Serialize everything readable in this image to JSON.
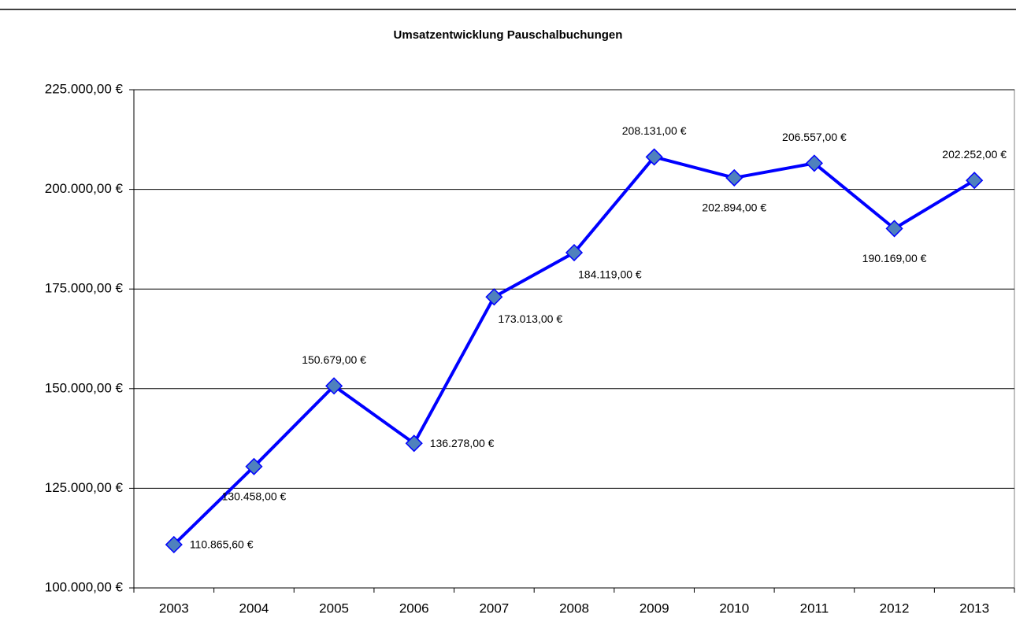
{
  "chart_data": {
    "type": "line",
    "title": "Umsatzentwicklung Pauschalbuchungen",
    "categories": [
      "2003",
      "2004",
      "2005",
      "2006",
      "2007",
      "2008",
      "2009",
      "2010",
      "2011",
      "2012",
      "2013"
    ],
    "series": [
      {
        "color": "#0000ff",
        "values": [
          110865.6,
          130458,
          150679,
          136278,
          173013,
          184119,
          208131,
          202894,
          206557,
          190169,
          202252
        ],
        "value_labels": [
          "110.865,60 €",
          "130.458,00 €",
          "150.679,00 €",
          "136.278,00 €",
          "173.013,00 €",
          "184.119,00 €",
          "208.131,00 €",
          "202.894,00 €",
          "206.557,00 €",
          "190.169,00 €",
          "202.252,00 €"
        ]
      }
    ],
    "ylim": [
      100000,
      225000
    ],
    "yticks": [
      {
        "value": 100000,
        "label": "100.000,00 €"
      },
      {
        "value": 125000,
        "label": "125.000,00 €"
      },
      {
        "value": 150000,
        "label": "150.000,00 €"
      },
      {
        "value": 175000,
        "label": "175.000,00 €"
      },
      {
        "value": 200000,
        "label": "200.000,00 €"
      },
      {
        "value": 225000,
        "label": "225.000,00 €"
      }
    ],
    "grid": true
  }
}
